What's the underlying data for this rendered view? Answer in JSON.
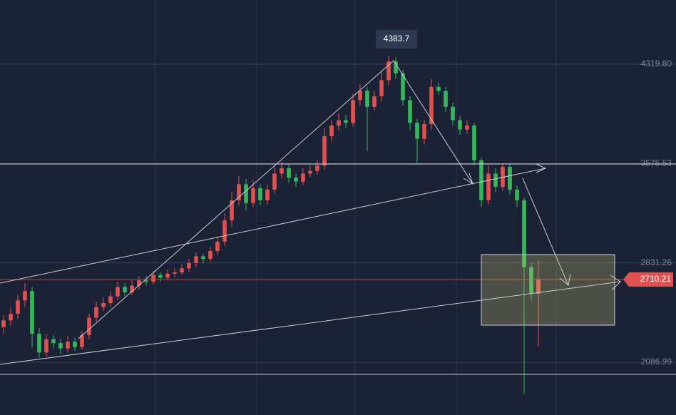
{
  "chart_data": {
    "type": "candlestick",
    "up_color": "#e0524f",
    "down_color": "#35b85a",
    "grid": true,
    "ylim": [
      1691,
      4800.7
    ],
    "yticks": [
      {
        "value": 4319.8,
        "label": "4319.80"
      },
      3575.53,
      2831.26,
      2086.99
    ],
    "open": [
      2350,
      2400,
      2450,
      2550,
      2620,
      2300,
      2160,
      2260,
      2230,
      2190,
      2240,
      2200,
      2290,
      2420,
      2500,
      2530,
      2580,
      2650,
      2610,
      2660,
      2700,
      2690,
      2740,
      2720,
      2750,
      2760,
      2790,
      2830,
      2880,
      2860,
      2920,
      2990,
      3150,
      3300,
      3420,
      3280,
      3390,
      3300,
      3380,
      3500,
      3540,
      3470,
      3440,
      3500,
      3520,
      3560,
      3780,
      3860,
      3900,
      3880,
      4050,
      4120,
      4000,
      4080,
      4200,
      4340,
      4250,
      4050,
      3880,
      3760,
      3870,
      4150,
      4120,
      4000,
      3900,
      3830,
      3860,
      3600,
      3300,
      3500,
      3400,
      3550,
      3380,
      3300,
      2800,
      2600
    ],
    "high": [
      2440,
      2500,
      2590,
      2680,
      2650,
      2340,
      2300,
      2290,
      2260,
      2280,
      2270,
      2320,
      2450,
      2540,
      2570,
      2620,
      2690,
      2680,
      2700,
      2730,
      2730,
      2770,
      2760,
      2780,
      2790,
      2820,
      2860,
      2910,
      2900,
      2950,
      3030,
      3200,
      3360,
      3480,
      3460,
      3450,
      3420,
      3420,
      3560,
      3590,
      3570,
      3500,
      3540,
      3560,
      3600,
      3840,
      3900,
      3950,
      3940,
      4100,
      4170,
      4150,
      4120,
      4260,
      4383.7,
      4370,
      4280,
      4080,
      3910,
      3900,
      4210,
      4180,
      4150,
      4030,
      3930,
      3900,
      3880,
      3620,
      3560,
      3540,
      3580,
      3570,
      3410,
      3320,
      2830,
      2850
    ],
    "low": [
      2300,
      2360,
      2410,
      2500,
      2200,
      2120,
      2130,
      2190,
      2150,
      2160,
      2170,
      2180,
      2260,
      2390,
      2470,
      2500,
      2550,
      2580,
      2590,
      2630,
      2660,
      2670,
      2690,
      2700,
      2720,
      2740,
      2760,
      2800,
      2830,
      2840,
      2890,
      2960,
      3100,
      3260,
      3220,
      3250,
      3260,
      3270,
      3350,
      3460,
      3430,
      3400,
      3410,
      3470,
      3490,
      3530,
      3740,
      3820,
      3840,
      3850,
      4010,
      3670,
      3970,
      4040,
      4160,
      4210,
      4010,
      3820,
      3580,
      3720,
      3830,
      4090,
      3960,
      3860,
      3790,
      3800,
      3560,
      3250,
      3270,
      3360,
      3370,
      3340,
      3250,
      1850,
      2550,
      2200
    ],
    "close": [
      2400,
      2450,
      2550,
      2620,
      2300,
      2160,
      2260,
      2230,
      2190,
      2240,
      2200,
      2290,
      2420,
      2500,
      2530,
      2580,
      2650,
      2610,
      2660,
      2700,
      2690,
      2740,
      2720,
      2750,
      2760,
      2790,
      2830,
      2880,
      2860,
      2920,
      2990,
      3150,
      3300,
      3420,
      3280,
      3390,
      3300,
      3380,
      3500,
      3540,
      3470,
      3440,
      3500,
      3520,
      3560,
      3780,
      3860,
      3900,
      3880,
      4050,
      4120,
      4000,
      4080,
      4200,
      4340,
      4250,
      4050,
      3880,
      3760,
      3870,
      4150,
      4120,
      4000,
      3900,
      3830,
      3860,
      3600,
      3300,
      3500,
      3400,
      3550,
      3380,
      3300,
      2800,
      2600,
      2710.21
    ]
  }
}
